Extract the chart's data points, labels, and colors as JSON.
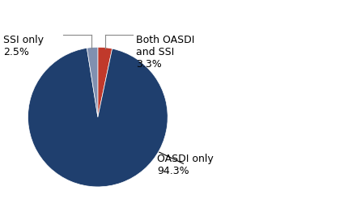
{
  "wedge_sizes": [
    94.3,
    2.5,
    3.3
  ],
  "wedge_colors": [
    "#1f3f6e",
    "#8090b0",
    "#c0392b"
  ],
  "startangle": 96,
  "background_color": "#ffffff",
  "annotation_oasdi_label": "OASDI only\n94.3%",
  "annotation_ssi_label": "SSI only\n2.5%",
  "annotation_both_label": "Both OASDI\nand SSI\n3.3%",
  "fontsize": 9
}
